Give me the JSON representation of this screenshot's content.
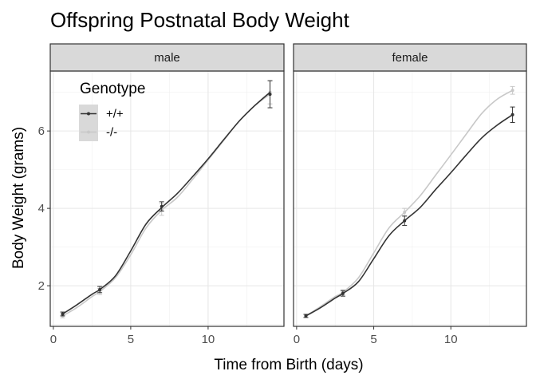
{
  "chart_data": {
    "type": "line",
    "title": "Offspring Postnatal Body Weight",
    "xlabel": "Time from Birth (days)",
    "ylabel": "Body Weight (grams)",
    "xlim": [
      -0.2,
      14.9
    ],
    "ylim": [
      0.95,
      7.55
    ],
    "x_ticks": [
      0,
      5,
      10
    ],
    "y_ticks": [
      2,
      4,
      6
    ],
    "grid": true,
    "legend": {
      "title": "Genotype",
      "placement": "inside-top-left",
      "entries": [
        "+/+",
        "-/-"
      ]
    },
    "series_style": {
      "+/+": "#333333",
      "-/-": "#c8c8c8"
    },
    "panels": [
      {
        "label": "male",
        "series": [
          {
            "name": "+/+",
            "curve_x": [
              0.6,
              1.5,
              2.5,
              3.0,
              4.0,
              5.0,
              6.0,
              7.0,
              8.0,
              9.0,
              10.0,
              11.0,
              12.0,
              13.0,
              14.0
            ],
            "curve_y": [
              1.27,
              1.5,
              1.78,
              1.9,
              2.25,
              2.9,
              3.6,
              4.02,
              4.38,
              4.82,
              5.28,
              5.77,
              6.25,
              6.65,
              7.0
            ],
            "points_x": [
              0.6,
              3.0,
              7.0,
              14.0
            ],
            "points_y": [
              1.27,
              1.9,
              4.05,
              6.95
            ],
            "err": [
              0.05,
              0.08,
              0.12,
              0.35
            ]
          },
          {
            "name": "-/-",
            "curve_x": [
              0.6,
              1.5,
              2.5,
              3.0,
              4.0,
              5.0,
              6.0,
              7.0,
              8.0,
              9.0,
              10.0,
              11.0,
              12.0,
              13.0,
              14.0
            ],
            "curve_y": [
              1.22,
              1.43,
              1.72,
              1.85,
              2.2,
              2.8,
              3.5,
              3.95,
              4.28,
              4.75,
              5.25,
              5.75,
              6.25,
              6.65,
              6.95
            ],
            "points_x": [
              0.6,
              3.0,
              7.0,
              14.0
            ],
            "points_y": [
              1.22,
              1.85,
              3.97,
              7.0
            ],
            "err": [
              0.05,
              0.08,
              0.15,
              0.3
            ]
          }
        ]
      },
      {
        "label": "female",
        "series": [
          {
            "name": "+/+",
            "curve_x": [
              0.6,
              1.5,
              2.5,
              3.0,
              4.0,
              5.0,
              6.0,
              7.0,
              8.0,
              9.0,
              10.0,
              11.0,
              12.0,
              13.0,
              14.0
            ],
            "curve_y": [
              1.22,
              1.42,
              1.68,
              1.8,
              2.1,
              2.7,
              3.3,
              3.68,
              4.02,
              4.48,
              4.92,
              5.38,
              5.82,
              6.15,
              6.42
            ],
            "points_x": [
              0.6,
              3.0,
              7.0,
              14.0
            ],
            "points_y": [
              1.22,
              1.8,
              3.68,
              6.42
            ],
            "err": [
              0.04,
              0.07,
              0.12,
              0.2
            ]
          },
          {
            "name": "-/-",
            "curve_x": [
              0.6,
              1.5,
              2.5,
              3.0,
              4.0,
              5.0,
              6.0,
              7.0,
              8.0,
              9.0,
              10.0,
              11.0,
              12.0,
              13.0,
              14.0
            ],
            "curve_y": [
              1.22,
              1.45,
              1.72,
              1.83,
              2.2,
              2.85,
              3.5,
              3.9,
              4.32,
              4.85,
              5.38,
              5.92,
              6.45,
              6.82,
              7.05
            ],
            "points_x": [
              0.6,
              3.0,
              7.0,
              14.0
            ],
            "points_y": [
              1.22,
              1.83,
              3.9,
              7.05
            ],
            "err": [
              0.04,
              0.07,
              0.1,
              0.1
            ]
          }
        ]
      }
    ]
  }
}
